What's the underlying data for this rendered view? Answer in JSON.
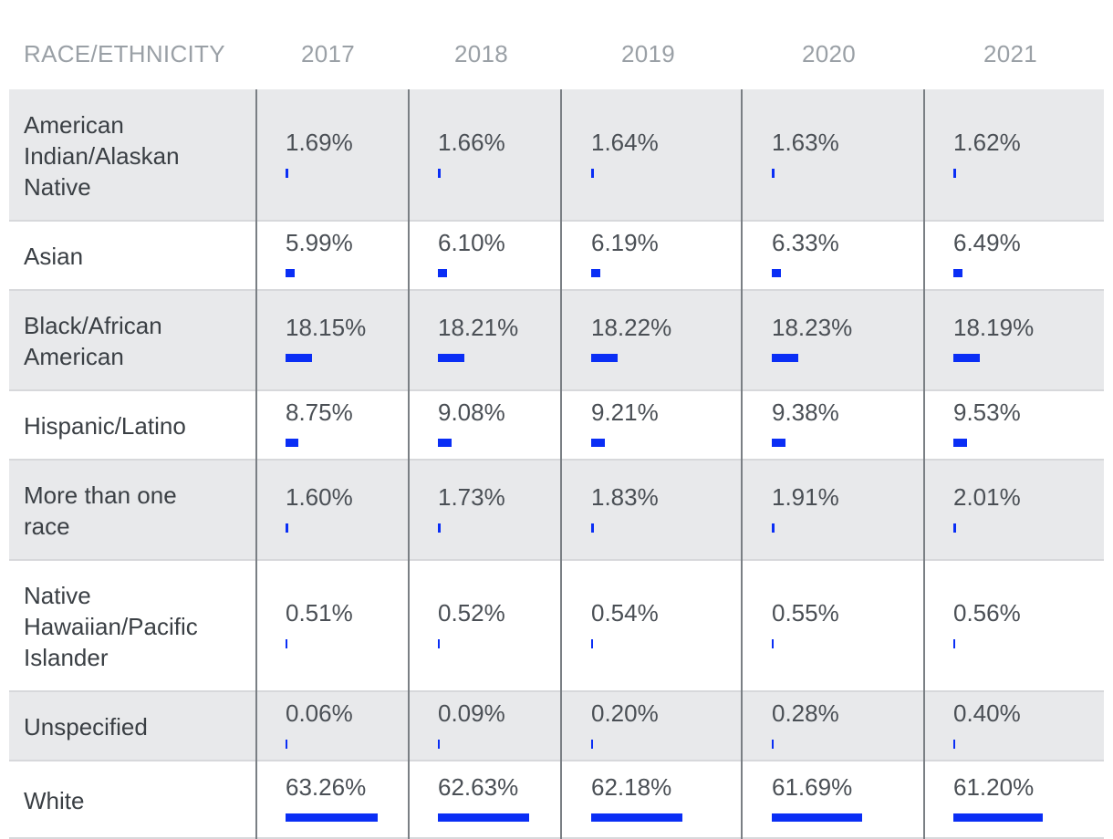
{
  "chart_data": {
    "type": "table",
    "header": [
      "RACE/ETHNICITY",
      "2017",
      "2018",
      "2019",
      "2020",
      "2021"
    ],
    "rows": [
      {
        "label": "American Indian/Alaskan Native",
        "label_lines": [
          "American",
          "Indian/Alaskan",
          "Native"
        ],
        "values": [
          "1.69%",
          "1.66%",
          "1.64%",
          "1.63%",
          "1.62%"
        ],
        "nums": [
          1.69,
          1.66,
          1.64,
          1.63,
          1.62
        ]
      },
      {
        "label": "Asian",
        "label_lines": [
          "Asian"
        ],
        "values": [
          "5.99%",
          "6.10%",
          "6.19%",
          "6.33%",
          "6.49%"
        ],
        "nums": [
          5.99,
          6.1,
          6.19,
          6.33,
          6.49
        ]
      },
      {
        "label": "Black/African American",
        "label_lines": [
          "Black/African",
          "American"
        ],
        "values": [
          "18.15%",
          "18.21%",
          "18.22%",
          "18.23%",
          "18.19%"
        ],
        "nums": [
          18.15,
          18.21,
          18.22,
          18.23,
          18.19
        ]
      },
      {
        "label": "Hispanic/Latino",
        "label_lines": [
          "Hispanic/Latino"
        ],
        "values": [
          "8.75%",
          "9.08%",
          "9.21%",
          "9.38%",
          "9.53%"
        ],
        "nums": [
          8.75,
          9.08,
          9.21,
          9.38,
          9.53
        ]
      },
      {
        "label": "More than one race",
        "label_lines": [
          "More than one",
          "race"
        ],
        "values": [
          "1.60%",
          "1.73%",
          "1.83%",
          "1.91%",
          "2.01%"
        ],
        "nums": [
          1.6,
          1.73,
          1.83,
          1.91,
          2.01
        ]
      },
      {
        "label": "Native Hawaiian/Pacific Islander",
        "label_lines": [
          "Native",
          "Hawaiian/Pacific",
          "Islander"
        ],
        "values": [
          "0.51%",
          "0.52%",
          "0.54%",
          "0.55%",
          "0.56%"
        ],
        "nums": [
          0.51,
          0.52,
          0.54,
          0.55,
          0.56
        ]
      },
      {
        "label": "Unspecified",
        "label_lines": [
          "Unspecified"
        ],
        "values": [
          "0.06%",
          "0.09%",
          "0.20%",
          "0.28%",
          "0.40%"
        ],
        "nums": [
          0.06,
          0.09,
          0.2,
          0.28,
          0.4
        ]
      },
      {
        "label": "White",
        "label_lines": [
          "White"
        ],
        "values": [
          "63.26%",
          "62.63%",
          "62.18%",
          "61.69%",
          "61.20%"
        ],
        "nums": [
          63.26,
          62.63,
          62.18,
          61.69,
          61.2
        ]
      }
    ],
    "bar_color": "#0a2ef5",
    "row_shading": [
      "#e8e9eb",
      "#ffffff"
    ]
  }
}
